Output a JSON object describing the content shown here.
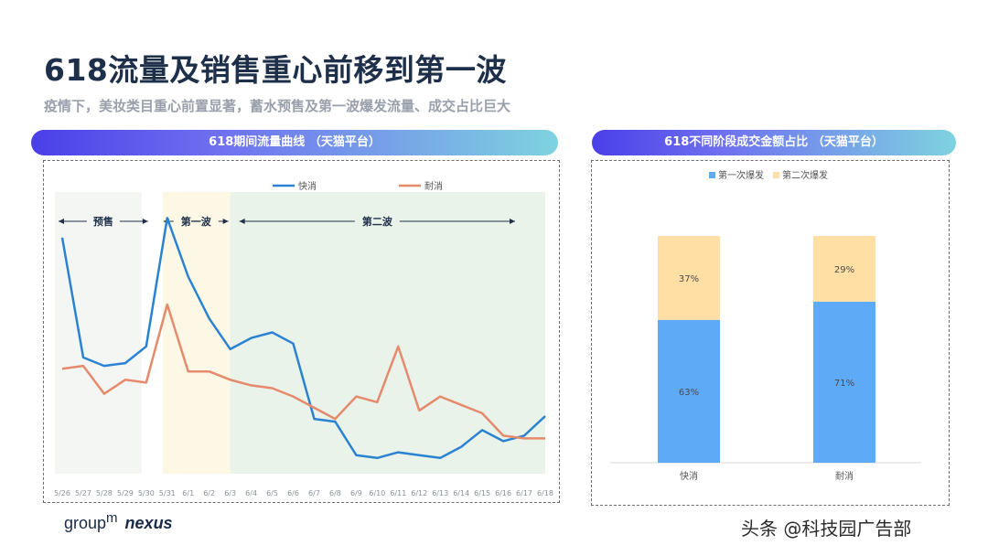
{
  "title": "618流量及销售重心前移到第一波",
  "subtitle": "疫情下，美妆类目重心前置显著，蓄水预售及第一波爆发流量、成交占比巨大",
  "left_banner": "618期间流量曲线 （天猫平台）",
  "right_banner": "618不同阶段成交金额占比 （天猫平台）",
  "logo": {
    "part1": "group",
    "part1_sup": "m",
    "part2": "nexus"
  },
  "watermark": "头条 @科技园广告部",
  "colors": {
    "kuaixiao": "#2b82d2",
    "naixiao": "#e58a6c",
    "presale_bg": "#f4f6f4",
    "wave1_bg": "#fdf8e6",
    "wave2_bg": "#e9f3ea",
    "bar_blue": "#5eaaf7",
    "bar_yellow": "#ffdfa3"
  },
  "phases": [
    {
      "label": "预售",
      "start": "5/26",
      "end": "5/30"
    },
    {
      "label": "第一波",
      "start": "5/31",
      "end": "6/3"
    },
    {
      "label": "第二波",
      "start": "6/3",
      "end": "6/18"
    }
  ],
  "chart_data": [
    {
      "type": "line",
      "legend_position": "top",
      "x": [
        "5/26",
        "5/27",
        "5/28",
        "5/29",
        "5/30",
        "5/31",
        "6/1",
        "6/2",
        "6/3",
        "6/4",
        "6/5",
        "6/6",
        "6/7",
        "6/8",
        "6/9",
        "6/10",
        "6/11",
        "6/12",
        "6/13",
        "6/14",
        "6/15",
        "6/16",
        "6/17",
        "6/18"
      ],
      "series": [
        {
          "name": "快消",
          "values": [
            84,
            41,
            38,
            39,
            45,
            91,
            70,
            55,
            44,
            48,
            50,
            46,
            19,
            18,
            6,
            5,
            7,
            6,
            5,
            9,
            15,
            11,
            13,
            20
          ]
        },
        {
          "name": "耐消",
          "values": [
            37,
            38,
            28,
            33,
            32,
            60,
            36,
            36,
            33,
            31,
            30,
            27,
            23,
            19,
            27,
            25,
            45,
            22,
            27,
            24,
            21,
            13,
            12,
            12
          ]
        }
      ],
      "ylim": [
        0,
        100
      ],
      "grid": false
    },
    {
      "type": "bar",
      "stacked": true,
      "legend_position": "top",
      "categories": [
        "快消",
        "耐消"
      ],
      "series": [
        {
          "name": "第一次爆发",
          "values": [
            63,
            71
          ],
          "labels": [
            "63%",
            "71%"
          ]
        },
        {
          "name": "第二次爆发",
          "values": [
            37,
            29
          ],
          "labels": [
            "37%",
            "29%"
          ]
        }
      ],
      "ylim": [
        0,
        100
      ]
    }
  ]
}
